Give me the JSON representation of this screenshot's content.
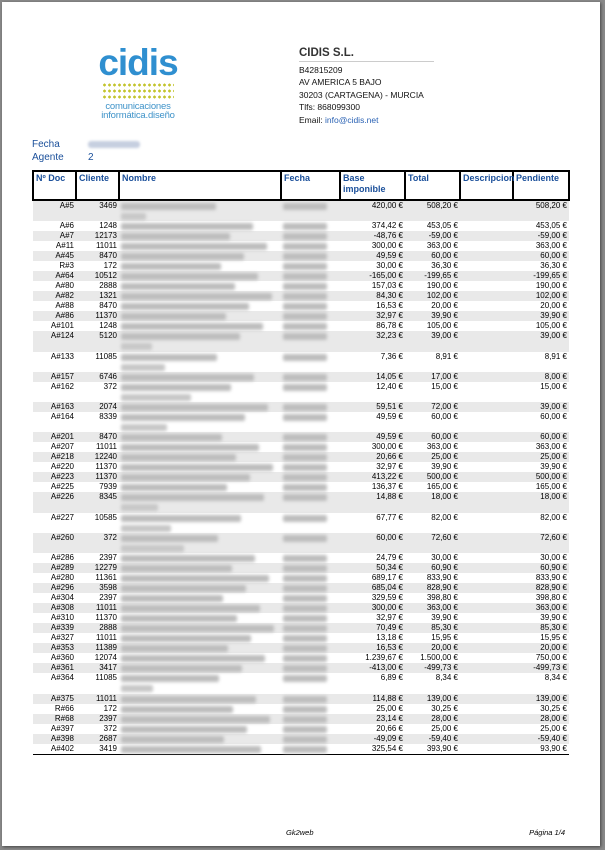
{
  "logo": {
    "word": "cidis",
    "tagline1": "comunicaciones",
    "tagline2": "informática.diseño",
    "brand_blue": "#2f8fd0",
    "brand_yellow": "#c3c42e"
  },
  "company": {
    "name": "CIDIS S.L.",
    "cif": "B42815209",
    "address": "AV AMERICA 5 BAJO",
    "city": "30203 (CARTAGENA) - MURCIA",
    "phone": "Tlfs: 868099300",
    "email_label": "Email: ",
    "email": "info@cidis.net"
  },
  "meta": {
    "fecha_label": "Fecha",
    "agente_label": "Agente",
    "agente_value": "2"
  },
  "table": {
    "headers": [
      "Nº Doc",
      "Cliente",
      "Nombre",
      "Fecha",
      "Base imponible",
      "Total",
      "Descripcion",
      "Pendiente"
    ],
    "rows": [
      [
        "A#5",
        "3469",
        "420,00 €",
        "508,20 €",
        "508,20 €"
      ],
      [
        "A#6",
        "1248",
        "374,42 €",
        "453,05 €",
        "453,05 €"
      ],
      [
        "A#7",
        "12173",
        "-48,76 €",
        "-59,00 €",
        "-59,00 €"
      ],
      [
        "A#11",
        "11011",
        "300,00 €",
        "363,00 €",
        "363,00 €"
      ],
      [
        "A#45",
        "8470",
        "49,59 €",
        "60,00 €",
        "60,00 €"
      ],
      [
        "R#3",
        "172",
        "30,00 €",
        "36,30 €",
        "36,30 €"
      ],
      [
        "A#64",
        "10512",
        "-165,00 €",
        "-199,65 €",
        "-199,65 €"
      ],
      [
        "A#80",
        "2888",
        "157,03 €",
        "190,00 €",
        "190,00 €"
      ],
      [
        "A#82",
        "1321",
        "84,30 €",
        "102,00 €",
        "102,00 €"
      ],
      [
        "A#88",
        "8470",
        "16,53 €",
        "20,00 €",
        "20,00 €"
      ],
      [
        "A#86",
        "11370",
        "32,97 €",
        "39,90 €",
        "39,90 €"
      ],
      [
        "A#101",
        "1248",
        "86,78 €",
        "105,00 €",
        "105,00 €"
      ],
      [
        "A#124",
        "5120",
        "32,23 €",
        "39,00 €",
        "39,00 €"
      ],
      [
        "A#133",
        "11085",
        "7,36 €",
        "8,91 €",
        "8,91 €"
      ],
      [
        "A#157",
        "6746",
        "14,05 €",
        "17,00 €",
        "8,00 €"
      ],
      [
        "A#162",
        "372",
        "12,40 €",
        "15,00 €",
        "15,00 €"
      ],
      [
        "A#163",
        "2074",
        "59,51 €",
        "72,00 €",
        "39,00 €"
      ],
      [
        "A#164",
        "8339",
        "49,59 €",
        "60,00 €",
        "60,00 €"
      ],
      [
        "A#201",
        "8470",
        "49,59 €",
        "60,00 €",
        "60,00 €"
      ],
      [
        "A#207",
        "11011",
        "300,00 €",
        "363,00 €",
        "363,00 €"
      ],
      [
        "A#218",
        "12240",
        "20,66 €",
        "25,00 €",
        "25,00 €"
      ],
      [
        "A#220",
        "11370",
        "32,97 €",
        "39,90 €",
        "39,90 €"
      ],
      [
        "A#223",
        "11370",
        "413,22 €",
        "500,00 €",
        "500,00 €"
      ],
      [
        "A#225",
        "7939",
        "136,37 €",
        "165,00 €",
        "165,00 €"
      ],
      [
        "A#226",
        "8345",
        "14,88 €",
        "18,00 €",
        "18,00 €"
      ],
      [
        "A#227",
        "10585",
        "67,77 €",
        "82,00 €",
        "82,00 €"
      ],
      [
        "A#260",
        "372",
        "60,00 €",
        "72,60 €",
        "72,60 €"
      ],
      [
        "A#286",
        "2397",
        "24,79 €",
        "30,00 €",
        "30,00 €"
      ],
      [
        "A#289",
        "12279",
        "50,34 €",
        "60,90 €",
        "60,90 €"
      ],
      [
        "A#280",
        "11361",
        "689,17 €",
        "833,90 €",
        "833,90 €"
      ],
      [
        "A#296",
        "3598",
        "685,04 €",
        "828,90 €",
        "828,90 €"
      ],
      [
        "A#304",
        "2397",
        "329,59 €",
        "398,80 €",
        "398,80 €"
      ],
      [
        "A#308",
        "11011",
        "300,00 €",
        "363,00 €",
        "363,00 €"
      ],
      [
        "A#310",
        "11370",
        "32,97 €",
        "39,90 €",
        "39,90 €"
      ],
      [
        "A#339",
        "2888",
        "70,49 €",
        "85,30 €",
        "85,30 €"
      ],
      [
        "A#327",
        "11011",
        "13,18 €",
        "15,95 €",
        "15,95 €"
      ],
      [
        "A#353",
        "11389",
        "16,53 €",
        "20,00 €",
        "20,00 €"
      ],
      [
        "A#360",
        "12074",
        "1.239,67 €",
        "1.500,00 €",
        "750,00 €"
      ],
      [
        "A#361",
        "3417",
        "-413,00 €",
        "-499,73 €",
        "-499,73 €"
      ],
      [
        "A#364",
        "11085",
        "6,89 €",
        "8,34 €",
        "8,34 €"
      ],
      [
        "A#375",
        "11011",
        "114,88 €",
        "139,00 €",
        "139,00 €"
      ],
      [
        "R#66",
        "172",
        "25,00 €",
        "30,25 €",
        "30,25 €"
      ],
      [
        "R#68",
        "2397",
        "23,14 €",
        "28,00 €",
        "28,00 €"
      ],
      [
        "A#397",
        "372",
        "20,66 €",
        "25,00 €",
        "25,00 €"
      ],
      [
        "A#398",
        "2687",
        "-49,09 €",
        "-59,40 €",
        "-59,40 €"
      ],
      [
        "A#402",
        "3419",
        "325,54 €",
        "393,90 €",
        "93,90 €"
      ]
    ]
  },
  "footer": {
    "center": "Gk2web",
    "page": "Página 1/4"
  }
}
